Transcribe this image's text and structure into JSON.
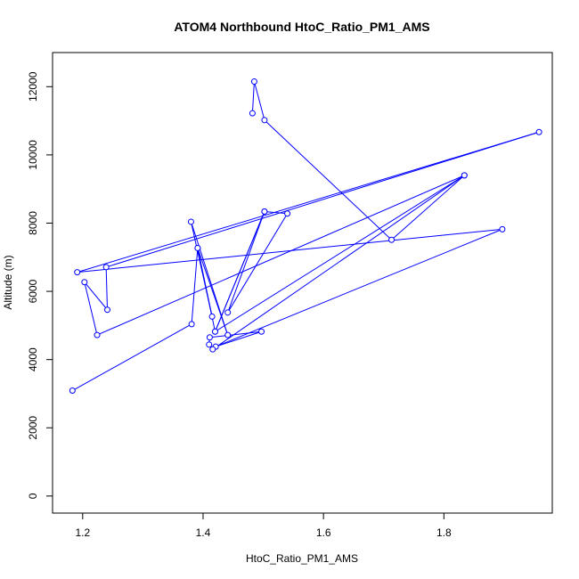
{
  "chart_data": {
    "type": "line",
    "title": "ATOM4 Northbound HtoC_Ratio_PM1_AMS",
    "xlabel": "HtoC_Ratio_PM1_AMS",
    "ylabel": "Altitude (m)",
    "xlim": [
      1.15,
      1.98
    ],
    "ylim": [
      -500,
      13000
    ],
    "xticks": [
      1.2,
      1.4,
      1.6,
      1.8
    ],
    "xtick_labels": [
      "1.2",
      "1.4",
      "1.6",
      "1.8"
    ],
    "yticks": [
      0,
      2000,
      4000,
      6000,
      8000,
      10000,
      12000
    ],
    "ytick_labels": [
      "0",
      "2000",
      "4000",
      "6000",
      "8000",
      "10000",
      "12000"
    ],
    "grid": false,
    "legend": "none",
    "colors": {
      "series": "#0000ff",
      "axis": "#000000"
    },
    "series": [
      {
        "marker": "open-circle",
        "points": [
          {
            "x": 1.183,
            "y": 3090
          },
          {
            "x": 1.381,
            "y": 5040
          },
          {
            "x": 1.391,
            "y": 7270
          },
          {
            "x": 1.415,
            "y": 5260
          },
          {
            "x": 1.38,
            "y": 8040
          },
          {
            "x": 1.441,
            "y": 4720
          },
          {
            "x": 1.391,
            "y": 7270
          },
          {
            "x": 1.42,
            "y": 4820
          },
          {
            "x": 1.502,
            "y": 8340
          },
          {
            "x": 1.441,
            "y": 5380
          },
          {
            "x": 1.54,
            "y": 8280
          },
          {
            "x": 1.502,
            "y": 8340
          },
          {
            "x": 1.42,
            "y": 4820
          },
          {
            "x": 1.834,
            "y": 9400
          },
          {
            "x": 1.224,
            "y": 4720
          },
          {
            "x": 1.203,
            "y": 6270
          },
          {
            "x": 1.241,
            "y": 5460
          },
          {
            "x": 1.239,
            "y": 6710
          },
          {
            "x": 1.958,
            "y": 10670
          },
          {
            "x": 1.191,
            "y": 6560
          },
          {
            "x": 1.897,
            "y": 7820
          },
          {
            "x": 1.421,
            "y": 4380
          },
          {
            "x": 1.497,
            "y": 4820
          },
          {
            "x": 1.411,
            "y": 4650
          },
          {
            "x": 1.41,
            "y": 4440
          },
          {
            "x": 1.416,
            "y": 4300
          },
          {
            "x": 1.834,
            "y": 9400
          },
          {
            "x": 1.713,
            "y": 7510
          },
          {
            "x": 1.502,
            "y": 11020
          },
          {
            "x": 1.485,
            "y": 12150
          },
          {
            "x": 1.482,
            "y": 11220
          }
        ]
      }
    ]
  }
}
